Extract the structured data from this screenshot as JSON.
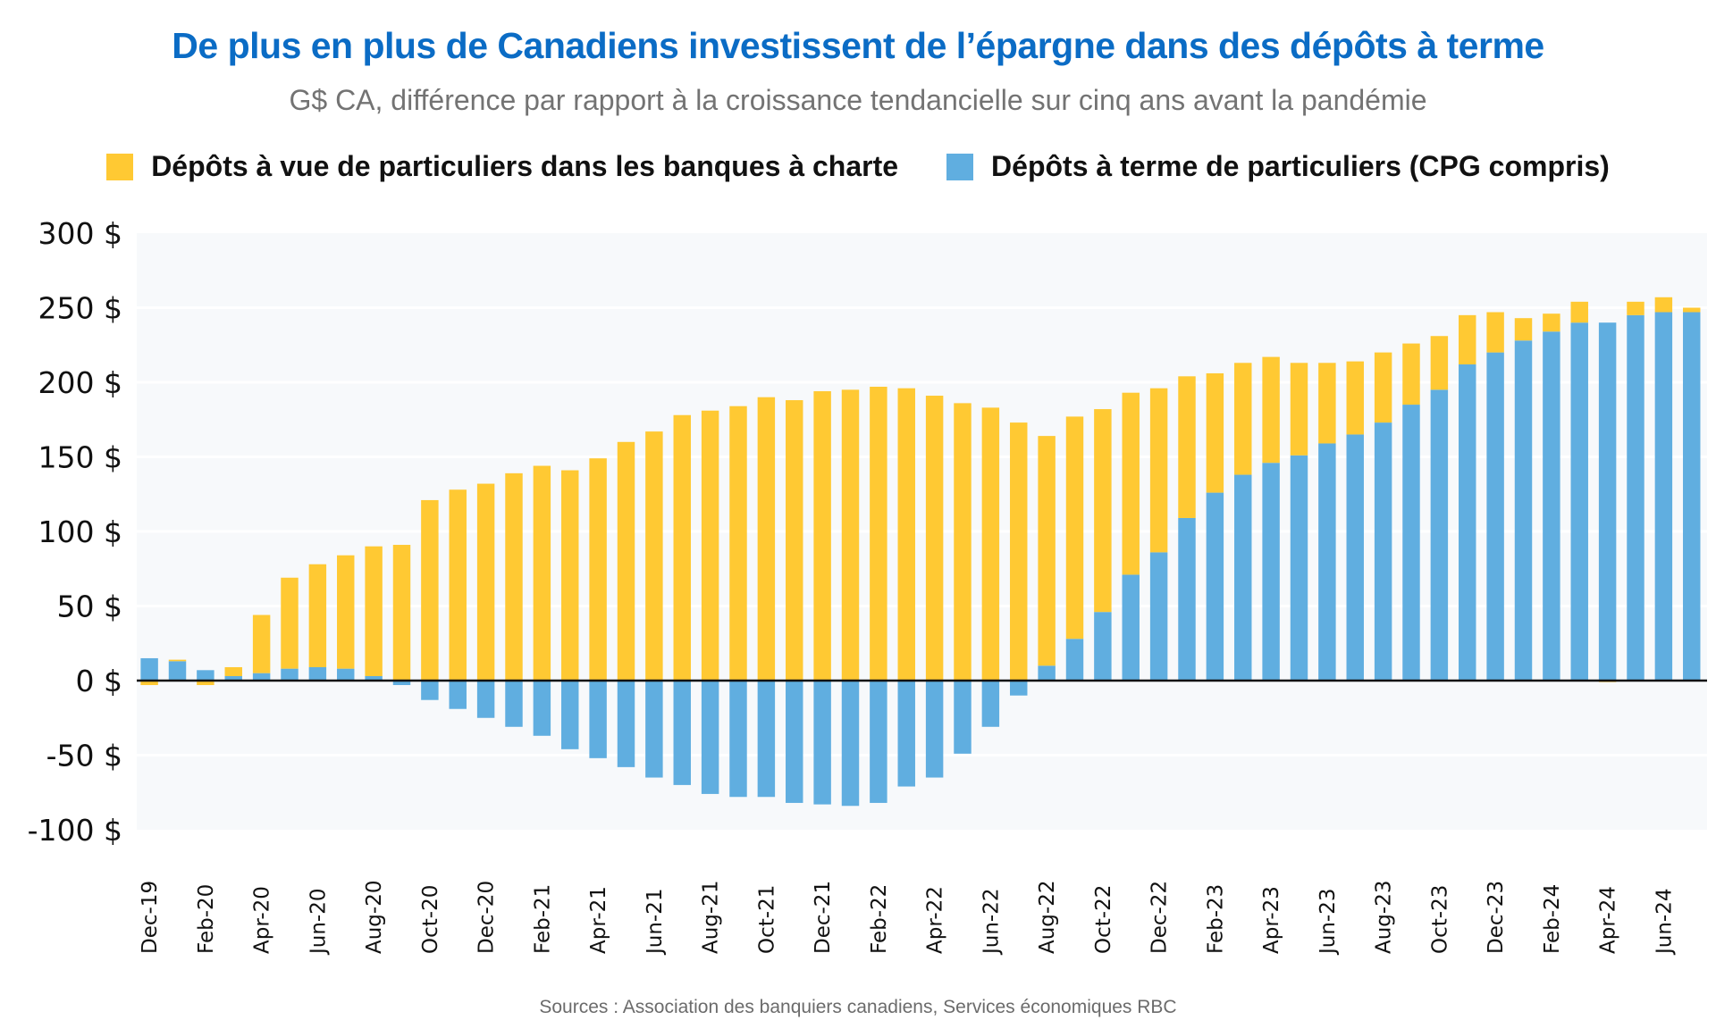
{
  "header": {
    "title": "De plus en plus de Canadiens investissent de l’épargne dans des dépôts à terme",
    "subtitle": "G$ CA, différence par rapport à la croissance tendancielle sur cinq ans avant la pandémie"
  },
  "legend": [
    {
      "label": "Dépôts à vue de particuliers dans les banques à charte",
      "color": "#ffc933"
    },
    {
      "label": "Dépôts à terme de particuliers (CPG compris)",
      "color": "#60aee0"
    }
  ],
  "footer": {
    "source": "Sources : Association des banquiers canadiens, Services économiques RBC"
  },
  "chart_data": {
    "type": "bar",
    "stacked": true,
    "title": "De plus en plus de Canadiens investissent de l’épargne dans des dépôts à terme",
    "subtitle": "G$ CA, différence par rapport à la croissance tendancielle sur cinq ans avant la pandémie",
    "xlabel": "",
    "ylabel": "",
    "ylim": [
      -100,
      300
    ],
    "yticks": [
      300,
      250,
      200,
      150,
      100,
      50,
      0,
      -50,
      -100
    ],
    "ytick_labels": [
      "300 $",
      "250 $",
      "200 $",
      "150 $",
      "100 $",
      "50 $",
      "0 $",
      "-50 $",
      "-100 $"
    ],
    "grid": true,
    "legend_position": "top",
    "categories": [
      "Dec-19",
      "Jan-20",
      "Feb-20",
      "Mar-20",
      "Apr-20",
      "May-20",
      "Jun-20",
      "Jul-20",
      "Aug-20",
      "Sep-20",
      "Oct-20",
      "Nov-20",
      "Dec-20",
      "Jan-21",
      "Feb-21",
      "Mar-21",
      "Apr-21",
      "May-21",
      "Jun-21",
      "Jul-21",
      "Aug-21",
      "Sep-21",
      "Oct-21",
      "Nov-21",
      "Dec-21",
      "Jan-22",
      "Feb-22",
      "Mar-22",
      "Apr-22",
      "May-22",
      "Jun-22",
      "Jul-22",
      "Aug-22",
      "Sep-22",
      "Oct-22",
      "Nov-22",
      "Dec-22",
      "Jan-23",
      "Feb-23",
      "Mar-23",
      "Apr-23",
      "May-23",
      "Jun-23",
      "Jul-23",
      "Aug-23",
      "Sep-23",
      "Oct-23",
      "Nov-23",
      "Dec-23",
      "Jan-24",
      "Feb-24",
      "Mar-24",
      "Apr-24",
      "May-24",
      "Jun-24",
      "Jul-24"
    ],
    "xtick_labels": [
      "Dec-19",
      "Feb-20",
      "Apr-20",
      "Jun-20",
      "Aug-20",
      "Oct-20",
      "Dec-20",
      "Feb-21",
      "Apr-21",
      "Jun-21",
      "Aug-21",
      "Oct-21",
      "Dec-21",
      "Feb-22",
      "Apr-22",
      "Jun-22",
      "Aug-22",
      "Oct-22",
      "Dec-22",
      "Feb-23",
      "Apr-23",
      "Jun-23",
      "Aug-23",
      "Oct-23",
      "Dec-23",
      "Feb-24",
      "Apr-24",
      "Jun-24"
    ],
    "series": [
      {
        "name": "Dépôts à terme de particuliers (CPG compris)",
        "color": "#60aee0",
        "values": [
          15,
          13,
          7,
          3,
          5,
          8,
          9,
          8,
          3,
          -3,
          -13,
          -19,
          -25,
          -31,
          -37,
          -46,
          -52,
          -58,
          -65,
          -70,
          -76,
          -78,
          -78,
          -82,
          -83,
          -84,
          -82,
          -71,
          -65,
          -49,
          -31,
          -10,
          10,
          28,
          46,
          71,
          86,
          109,
          126,
          138,
          146,
          151,
          159,
          165,
          173,
          185,
          195,
          212,
          220,
          228,
          234,
          240,
          240,
          245,
          247,
          247
        ]
      },
      {
        "name": "Dépôts à vue de particuliers dans les banques à charte",
        "color": "#ffc933",
        "values": [
          -3,
          1,
          -3,
          6,
          39,
          61,
          69,
          76,
          87,
          91,
          121,
          128,
          132,
          139,
          144,
          141,
          149,
          160,
          167,
          178,
          181,
          184,
          190,
          188,
          194,
          195,
          197,
          196,
          191,
          186,
          183,
          173,
          154,
          149,
          136,
          122,
          110,
          95,
          80,
          75,
          71,
          62,
          54,
          49,
          47,
          41,
          36,
          33,
          27,
          15,
          12,
          14,
          -1,
          9,
          10,
          3
        ]
      }
    ]
  }
}
